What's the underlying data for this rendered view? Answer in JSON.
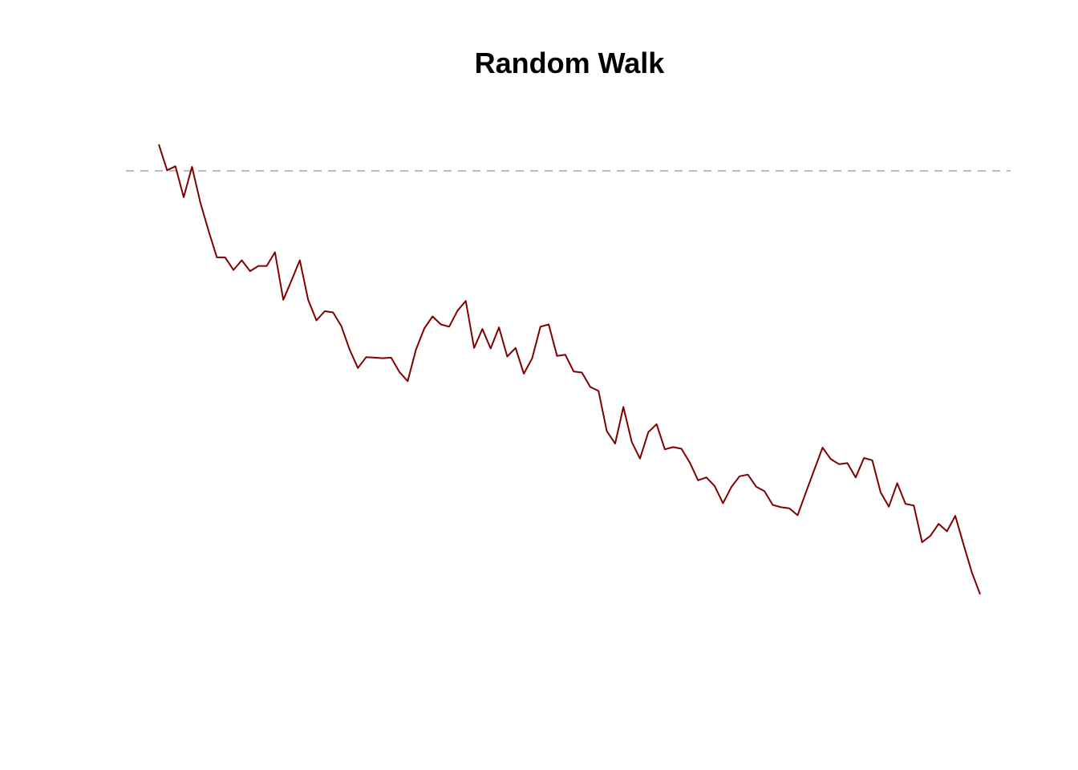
{
  "chart_data": {
    "type": "line",
    "title": "Random Walk",
    "xlabel": "",
    "ylabel": "",
    "grid": false,
    "legend": "none",
    "xlim": [
      1,
      100
    ],
    "ylim": [
      -11,
      2.5
    ],
    "reference_line": {
      "y": 0,
      "style": "dashed",
      "color": "#bebebe"
    },
    "series": [
      {
        "color": "#800000",
        "x": [
          1,
          2,
          3,
          4,
          5,
          6,
          7,
          8,
          9,
          10,
          11,
          12,
          13,
          14,
          15,
          16,
          17,
          18,
          19,
          20,
          21,
          22,
          23,
          24,
          25,
          26,
          27,
          28,
          29,
          30,
          31,
          32,
          33,
          34,
          35,
          36,
          37,
          38,
          39,
          40,
          41,
          42,
          43,
          44,
          45,
          46,
          47,
          48,
          49,
          50,
          51,
          52,
          53,
          54,
          55,
          56,
          57,
          58,
          59,
          60,
          61,
          62,
          63,
          64,
          65,
          66,
          67,
          68,
          69,
          70,
          71,
          72,
          73,
          74,
          75,
          76,
          77,
          78,
          79,
          80,
          81,
          82,
          83,
          84,
          85,
          86,
          87,
          88,
          89,
          90,
          91,
          92,
          93,
          94,
          95,
          96,
          97,
          98,
          99,
          100
        ],
        "values": [
          0.46,
          0.01,
          0.08,
          -0.46,
          0.07,
          -0.55,
          -1.05,
          -1.51,
          -1.51,
          -1.73,
          -1.56,
          -1.75,
          -1.66,
          -1.66,
          -1.42,
          -2.25,
          -1.91,
          -1.56,
          -2.25,
          -2.61,
          -2.45,
          -2.47,
          -2.71,
          -3.12,
          -3.44,
          -3.25,
          -3.26,
          -3.27,
          -3.26,
          -3.51,
          -3.67,
          -3.12,
          -2.75,
          -2.54,
          -2.68,
          -2.72,
          -2.44,
          -2.27,
          -3.09,
          -2.76,
          -3.1,
          -2.73,
          -3.24,
          -3.09,
          -3.54,
          -3.27,
          -2.72,
          -2.68,
          -3.23,
          -3.21,
          -3.5,
          -3.52,
          -3.77,
          -3.84,
          -4.54,
          -4.76,
          -4.12,
          -4.73,
          -5.02,
          -4.56,
          -4.42,
          -4.86,
          -4.82,
          -4.85,
          -5.09,
          -5.4,
          -5.35,
          -5.5,
          -5.8,
          -5.52,
          -5.33,
          -5.3,
          -5.51,
          -5.59,
          -5.83,
          -5.87,
          -5.89,
          -6.01,
          -5.61,
          -5.22,
          -4.83,
          -5.03,
          -5.12,
          -5.1,
          -5.35,
          -5.01,
          -5.05,
          -5.61,
          -5.86,
          -5.45,
          -5.81,
          -5.84,
          -6.48,
          -6.37,
          -6.16,
          -6.29,
          -6.02,
          -6.52,
          -7.01,
          -7.39
        ]
      }
    ]
  }
}
